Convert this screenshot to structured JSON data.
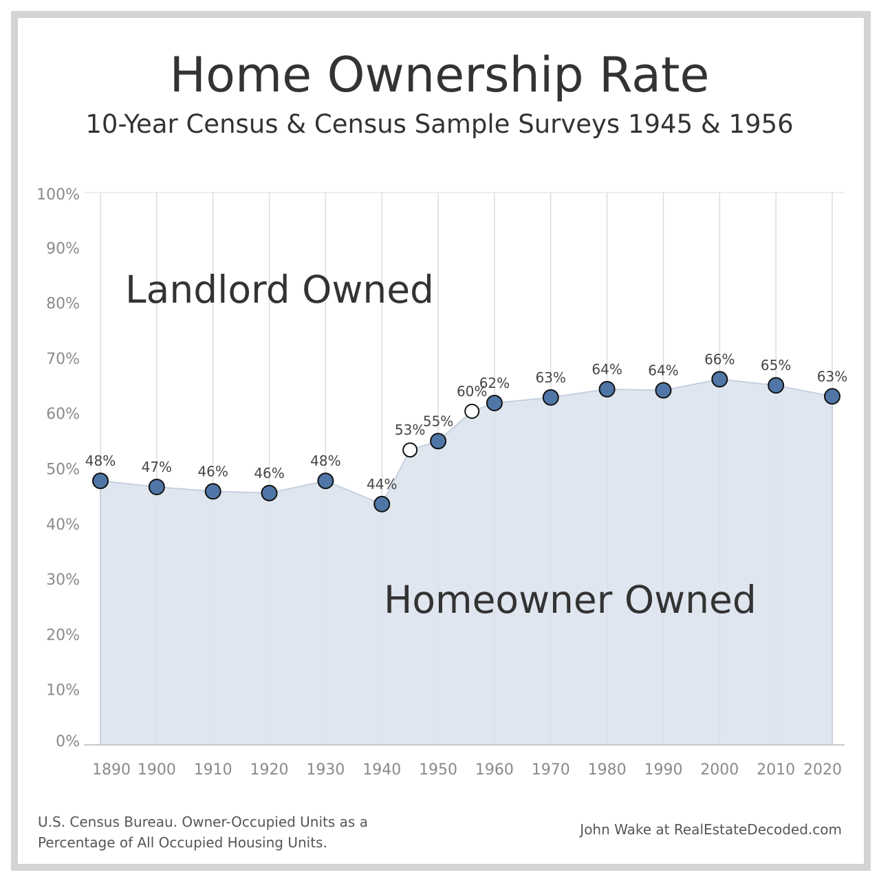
{
  "chart_data": {
    "type": "area",
    "title": "Home Ownership Rate",
    "subtitle": "10-Year Census & Census Sample Surveys 1945 & 1956",
    "ylim": [
      0,
      100
    ],
    "yticks": [
      0,
      10,
      20,
      30,
      40,
      50,
      60,
      70,
      80,
      90,
      100
    ],
    "ytick_labels": [
      "0%",
      "10%",
      "20%",
      "30%",
      "40%",
      "50%",
      "60%",
      "70%",
      "80%",
      "90%",
      "100%"
    ],
    "xticks": [
      1890,
      1900,
      1910,
      1920,
      1930,
      1940,
      1950,
      1960,
      1970,
      1980,
      1990,
      2000,
      2010,
      2020
    ],
    "xtick_labels": [
      "1890",
      "1900",
      "1910",
      "1920",
      "1930",
      "1940",
      "1950",
      "1960",
      "1970",
      "1980",
      "1990",
      "2000",
      "2010",
      "2020"
    ],
    "grid": "vertical",
    "region_labels": {
      "upper": "Landlord Owned",
      "lower": "Homeowner Owned"
    },
    "points": [
      {
        "x": 1890,
        "y": 47.8,
        "label": "48%",
        "kind": "census"
      },
      {
        "x": 1900,
        "y": 46.7,
        "label": "47%",
        "kind": "census"
      },
      {
        "x": 1910,
        "y": 45.9,
        "label": "46%",
        "kind": "census"
      },
      {
        "x": 1920,
        "y": 45.6,
        "label": "46%",
        "kind": "census"
      },
      {
        "x": 1930,
        "y": 47.8,
        "label": "48%",
        "kind": "census"
      },
      {
        "x": 1940,
        "y": 43.6,
        "label": "44%",
        "kind": "census"
      },
      {
        "x": 1945,
        "y": 53.4,
        "label": "53%",
        "kind": "sample"
      },
      {
        "x": 1950,
        "y": 55.0,
        "label": "55%",
        "kind": "census"
      },
      {
        "x": 1956,
        "y": 60.4,
        "label": "60%",
        "kind": "sample"
      },
      {
        "x": 1960,
        "y": 61.9,
        "label": "62%",
        "kind": "census"
      },
      {
        "x": 1970,
        "y": 62.9,
        "label": "63%",
        "kind": "census"
      },
      {
        "x": 1980,
        "y": 64.4,
        "label": "64%",
        "kind": "census"
      },
      {
        "x": 1990,
        "y": 64.2,
        "label": "64%",
        "kind": "census"
      },
      {
        "x": 2000,
        "y": 66.2,
        "label": "66%",
        "kind": "census"
      },
      {
        "x": 2010,
        "y": 65.1,
        "label": "65%",
        "kind": "census"
      },
      {
        "x": 2020,
        "y": 63.1,
        "label": "63%",
        "kind": "census"
      }
    ],
    "colors": {
      "area_fill": "#dbe2ec",
      "area_line": "#c4d0e0",
      "census_marker": "#4f76a6",
      "sample_marker": "#ffffff",
      "grid": "#dcdcdc"
    }
  },
  "footer": {
    "source_line1": "U.S. Census Bureau. Owner-Occupied Units as a",
    "source_line2": "Percentage of All Occupied Housing Units.",
    "credit": "John Wake at RealEstateDecoded.com"
  }
}
